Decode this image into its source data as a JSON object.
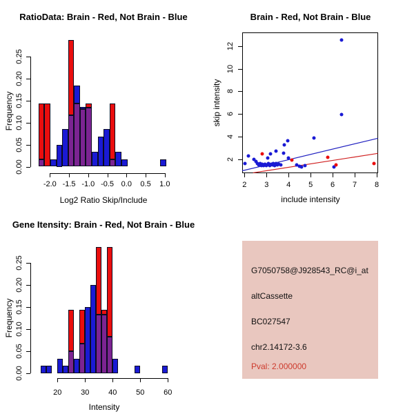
{
  "colors": {
    "red": "#ea0e0e",
    "blue": "#1a1ad4",
    "overlap_purple": "#7c2492",
    "line_blue": "#2020c0",
    "line_red": "#d02020",
    "info_bg": "#e9c7bf",
    "pval_red": "#cd3a2c",
    "axis": "#000000"
  },
  "chart_data": [
    {
      "id": "ratio_histogram",
      "type": "bar",
      "title": "RatioData: Brain - Red, Not Brain - Blue",
      "xlabel": "Log2 Ratio Skip/Include",
      "ylabel": "Frequency",
      "legend_note": "Brain - Red, Not Brain - Blue",
      "xlim": [
        -2.45,
        1.15
      ],
      "ylim": [
        0,
        0.29
      ],
      "grid": false,
      "bin_width": 0.155,
      "xtick_values": [
        -2.0,
        -1.5,
        -1.0,
        -0.5,
        0.0,
        0.5,
        1.0
      ],
      "xtick_labels": [
        "-2.0",
        "-1.5",
        "-1.0",
        "-0.5",
        "0.0",
        "0.5",
        "1.0"
      ],
      "ytick_values": [
        0,
        0.05,
        0.1,
        0.15,
        0.2,
        0.25
      ],
      "ytick_labels": [
        "0.00",
        "0.05",
        "0.10",
        "0.15",
        "0.20",
        "0.25"
      ],
      "bars": [
        {
          "x": -2.22,
          "red": 0.143,
          "blue": 0.017
        },
        {
          "x": -2.065,
          "red": 0.143,
          "blue": 0
        },
        {
          "x": -1.91,
          "red": 0,
          "blue": 0.017
        },
        {
          "x": -1.755,
          "red": 0,
          "blue": 0.05
        },
        {
          "x": -1.6,
          "red": 0,
          "blue": 0.085
        },
        {
          "x": -1.45,
          "red": 0.286,
          "blue": 0.117
        },
        {
          "x": -1.295,
          "red": 0.143,
          "blue": 0.183
        },
        {
          "x": -1.14,
          "red": 0.13,
          "blue": 0.135
        },
        {
          "x": -0.985,
          "red": 0.143,
          "blue": 0.133
        },
        {
          "x": -0.83,
          "red": 0,
          "blue": 0.033
        },
        {
          "x": -0.675,
          "red": 0,
          "blue": 0.068
        },
        {
          "x": -0.52,
          "red": 0,
          "blue": 0.085
        },
        {
          "x": -0.365,
          "red": 0.143,
          "blue": 0.017
        },
        {
          "x": -0.21,
          "red": 0,
          "blue": 0.033
        },
        {
          "x": -0.055,
          "red": 0,
          "blue": 0.017
        },
        {
          "x": 0.955,
          "red": 0,
          "blue": 0.017
        }
      ]
    },
    {
      "id": "intensity_scatter",
      "type": "scatter",
      "title": "Brain - Red, Not Brain - Blue",
      "xlabel": "include intensity",
      "ylabel": "skip intensity",
      "xlim": [
        1.9,
        8.05
      ],
      "ylim": [
        0.78,
        13.3
      ],
      "grid": false,
      "xtick_values": [
        2,
        3,
        4,
        5,
        6,
        7,
        8
      ],
      "xtick_labels": [
        "2",
        "3",
        "4",
        "5",
        "6",
        "7",
        "8"
      ],
      "ytick_values": [
        2,
        4,
        6,
        8,
        10,
        12
      ],
      "ytick_labels": [
        "2",
        "4",
        "6",
        "8",
        "10",
        "12"
      ],
      "series": [
        {
          "name": "Not Brain (blue)",
          "color_key": "blue",
          "points": [
            [
              2.03,
              1.6
            ],
            [
              2.18,
              2.28
            ],
            [
              2.42,
              1.95
            ],
            [
              2.52,
              1.8
            ],
            [
              2.58,
              1.62
            ],
            [
              2.66,
              1.5
            ],
            [
              2.71,
              1.6
            ],
            [
              2.76,
              1.4
            ],
            [
              2.82,
              1.52
            ],
            [
              2.87,
              1.43
            ],
            [
              2.93,
              1.56
            ],
            [
              2.98,
              1.4
            ],
            [
              3.03,
              1.5
            ],
            [
              3.05,
              2.1
            ],
            [
              3.09,
              1.62
            ],
            [
              3.14,
              1.44
            ],
            [
              3.18,
              2.45
            ],
            [
              3.2,
              1.54
            ],
            [
              3.26,
              1.46
            ],
            [
              3.32,
              1.58
            ],
            [
              3.37,
              1.41
            ],
            [
              3.42,
              2.7
            ],
            [
              3.43,
              1.62
            ],
            [
              3.5,
              1.5
            ],
            [
              3.57,
              1.54
            ],
            [
              3.64,
              1.48
            ],
            [
              3.78,
              2.55
            ],
            [
              3.82,
              3.25
            ],
            [
              3.95,
              3.65
            ],
            [
              3.98,
              2.08
            ],
            [
              4.36,
              1.5
            ],
            [
              4.48,
              1.35
            ],
            [
              4.6,
              1.27
            ],
            [
              4.75,
              1.42
            ],
            [
              5.16,
              3.88
            ],
            [
              6.06,
              1.28
            ],
            [
              6.4,
              5.93
            ],
            [
              6.4,
              12.55
            ]
          ]
        },
        {
          "name": "Brain (red)",
          "color_key": "red",
          "points": [
            [
              2.81,
              2.48
            ],
            [
              4.14,
              1.89
            ],
            [
              5.77,
              2.15
            ],
            [
              6.15,
              1.5
            ],
            [
              7.86,
              1.63
            ]
          ]
        }
      ],
      "fit_lines": [
        {
          "color_key": "line_blue",
          "x1": 1.9,
          "y1": 0.96,
          "x2": 8.05,
          "y2": 3.84
        },
        {
          "color_key": "line_red",
          "x1": 2.39,
          "y1": 0.78,
          "x2": 8.05,
          "y2": 2.5
        }
      ]
    },
    {
      "id": "gene_intensity_histogram",
      "type": "bar",
      "title": "Gene Itensity: Brain - Red, Not Brain - Blue",
      "xlabel": "Intensity",
      "ylabel": "Frequency",
      "legend_note": "Brain - Red, Not Brain - Blue",
      "xlim": [
        13,
        61
      ],
      "ylim": [
        0,
        0.29
      ],
      "grid": false,
      "bin_width": 2,
      "xtick_values": [
        20,
        30,
        40,
        50,
        60
      ],
      "xtick_labels": [
        "20",
        "30",
        "40",
        "50",
        "60"
      ],
      "ytick_values": [
        0,
        0.05,
        0.1,
        0.15,
        0.2,
        0.25
      ],
      "ytick_labels": [
        "0.00",
        "0.05",
        "0.10",
        "0.15",
        "0.20",
        "0.25"
      ],
      "bars": [
        {
          "x": 15,
          "red": 0,
          "blue": 0.017
        },
        {
          "x": 17,
          "red": 0,
          "blue": 0.017
        },
        {
          "x": 21,
          "red": 0,
          "blue": 0.033
        },
        {
          "x": 23,
          "red": 0,
          "blue": 0.017
        },
        {
          "x": 25,
          "red": 0.143,
          "blue": 0.05
        },
        {
          "x": 27,
          "red": 0,
          "blue": 0.033
        },
        {
          "x": 29,
          "red": 0.143,
          "blue": 0.067
        },
        {
          "x": 31,
          "red": 0,
          "blue": 0.15
        },
        {
          "x": 33,
          "red": 0,
          "blue": 0.2
        },
        {
          "x": 35,
          "red": 0.286,
          "blue": 0.133
        },
        {
          "x": 37,
          "red": 0.143,
          "blue": 0.133
        },
        {
          "x": 39,
          "red": 0.286,
          "blue": 0.083
        },
        {
          "x": 41,
          "red": 0,
          "blue": 0.033
        },
        {
          "x": 49,
          "red": 0,
          "blue": 0.017
        },
        {
          "x": 59,
          "red": 0,
          "blue": 0.017
        }
      ]
    }
  ],
  "info_panel": {
    "lines": [
      "G7050758@J928543_RC@i_at",
      "altCassette",
      "BC027547",
      "chr2.14172-3.6",
      "Pval: 2.000000"
    ]
  }
}
